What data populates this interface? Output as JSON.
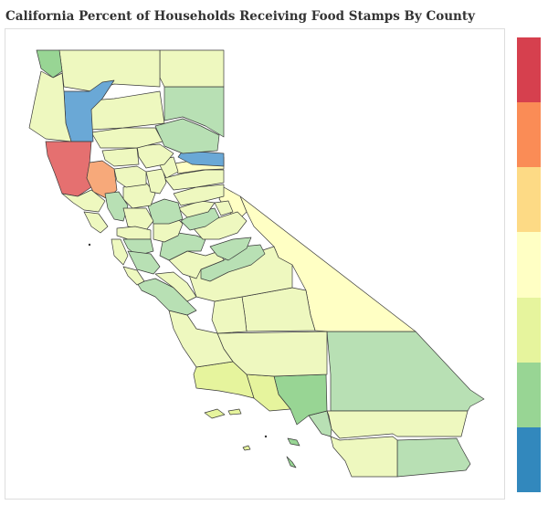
{
  "title": "California Percent of Households Receiving Food Stamps By County",
  "colors": {
    "legend_scale_top_to_bottom": [
      "#d6404e",
      "#fa8c56",
      "#fdda85",
      "#ffffc4",
      "#e6f49d",
      "#98d594",
      "#3288bd"
    ],
    "level_1_highest": "#d6404e",
    "level_2": "#fa8c56",
    "level_3": "#fdda85",
    "level_4": "#ffffc4",
    "level_5": "#e6f49d",
    "level_6": "#98d594",
    "level_7_lowest": "#3288bd",
    "map_light_green": "#b8e0b4",
    "map_pale_yellow_green": "#eef8bf",
    "map_blue": "#6aa8d6",
    "map_red": "#e57070",
    "map_orange": "#f7a97a"
  },
  "legend": {
    "labels": []
  }
}
